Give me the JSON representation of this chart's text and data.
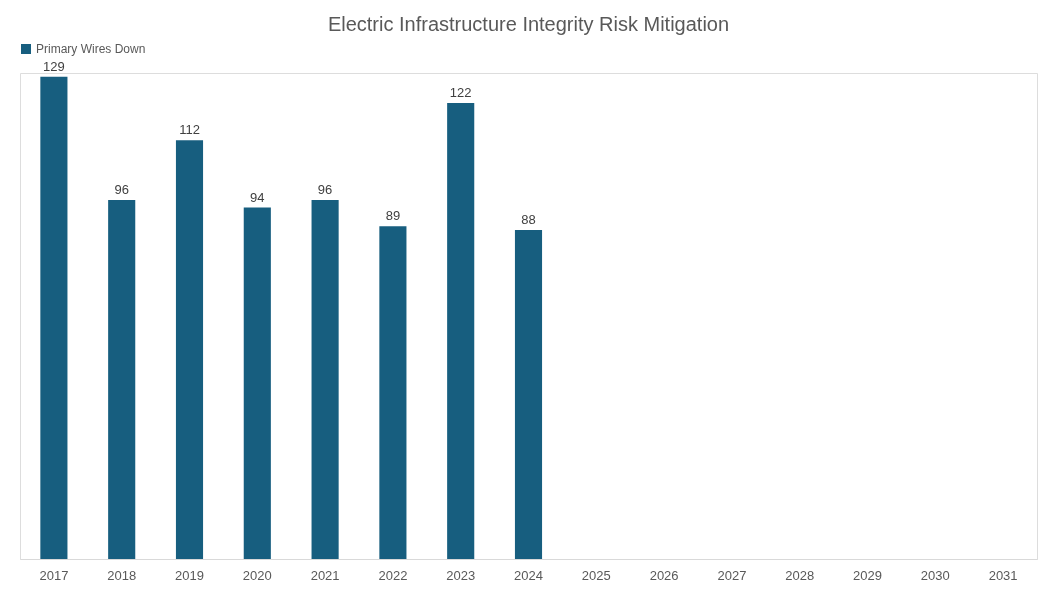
{
  "chart_data": {
    "type": "bar",
    "title": "Electric Infrastructure Integrity Risk Mitigation",
    "categories": [
      "2017",
      "2018",
      "2019",
      "2020",
      "2021",
      "2022",
      "2023",
      "2024",
      "2025",
      "2026",
      "2027",
      "2028",
      "2029",
      "2030",
      "2031"
    ],
    "series": [
      {
        "name": "Primary Wires Down",
        "color": "#175e7f",
        "values": [
          129,
          96,
          112,
          94,
          96,
          89,
          122,
          88,
          null,
          null,
          null,
          null,
          null,
          null,
          null
        ]
      }
    ],
    "data_labels": true,
    "legend": "top",
    "grid": false,
    "tick_labels": "x"
  }
}
